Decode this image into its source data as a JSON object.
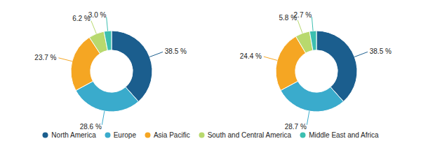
{
  "chart_data": [
    {
      "type": "pie",
      "categories": [
        "North America",
        "Europe",
        "Asia Pacific",
        "South and Central America",
        "Middle East and Africa"
      ],
      "values": [
        38.5,
        28.6,
        23.7,
        6.2,
        3.0
      ],
      "value_labels": [
        "38.5 %",
        "28.6 %",
        "23.7 %",
        "6.2 %",
        "3.0 %"
      ],
      "colors": [
        "#1b5e8e",
        "#3aabcc",
        "#f5a623",
        "#b8d96e",
        "#3cbfb0"
      ],
      "data_labels": true,
      "legend": "bottom"
    },
    {
      "type": "pie",
      "categories": [
        "North America",
        "Europe",
        "Asia Pacific",
        "South and Central America",
        "Middle East and Africa"
      ],
      "values": [
        38.5,
        28.7,
        24.4,
        5.8,
        2.7
      ],
      "value_labels": [
        "38.5 %",
        "28.7 %",
        "24.4 %",
        "5.8 %",
        "2.7 %"
      ],
      "colors": [
        "#1b5e8e",
        "#3aabcc",
        "#f5a623",
        "#b8d96e",
        "#3cbfb0"
      ],
      "data_labels": true
    }
  ]
}
